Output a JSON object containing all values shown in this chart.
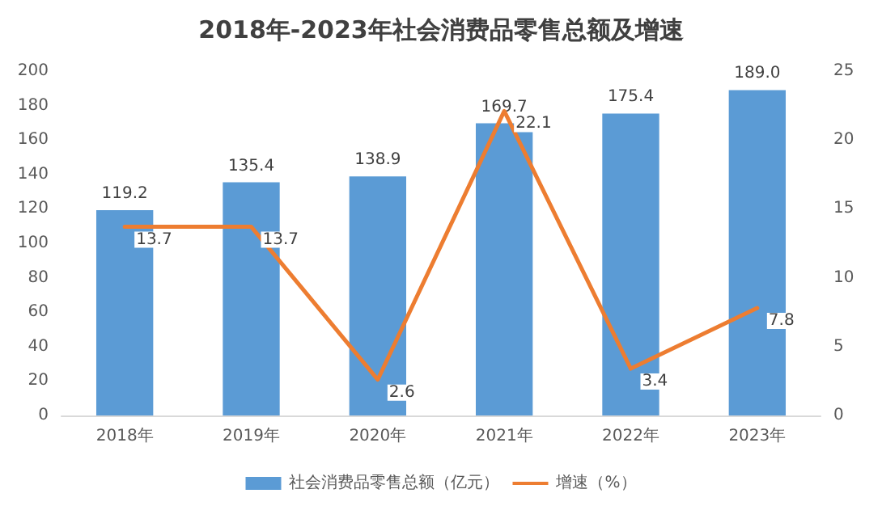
{
  "chart_data": {
    "type": "bar",
    "title": "2018年-2023年社会消费品零售总额及增速",
    "categories": [
      "2018年",
      "2019年",
      "2020年",
      "2021年",
      "2022年",
      "2023年"
    ],
    "series": [
      {
        "name": "社会消费品零售总额（亿元）",
        "color": "#5b9bd5",
        "values": [
          119.2,
          135.4,
          138.9,
          169.7,
          175.4,
          189.0
        ],
        "value_labels": [
          "119.2",
          "135.4",
          "138.9",
          "169.7",
          "175.4",
          "189.0"
        ]
      },
      {
        "name": "增速（%）",
        "type": "line",
        "axis": "y2",
        "color": "#ed7d31",
        "values": [
          13.7,
          13.7,
          2.6,
          22.1,
          3.4,
          7.8
        ],
        "value_labels": [
          "13.7",
          "13.7",
          "2.6",
          "22.1",
          "3.4",
          "7.8"
        ]
      }
    ],
    "ylim": [
      0,
      200
    ],
    "yticks": [
      0,
      20,
      40,
      60,
      80,
      100,
      120,
      140,
      160,
      180,
      200
    ],
    "y2lim": [
      0,
      25
    ],
    "y2ticks": [
      0,
      5,
      10,
      15,
      20,
      25
    ],
    "legend": "bottom",
    "marker": "none",
    "line_style": "solid",
    "grid": false
  }
}
